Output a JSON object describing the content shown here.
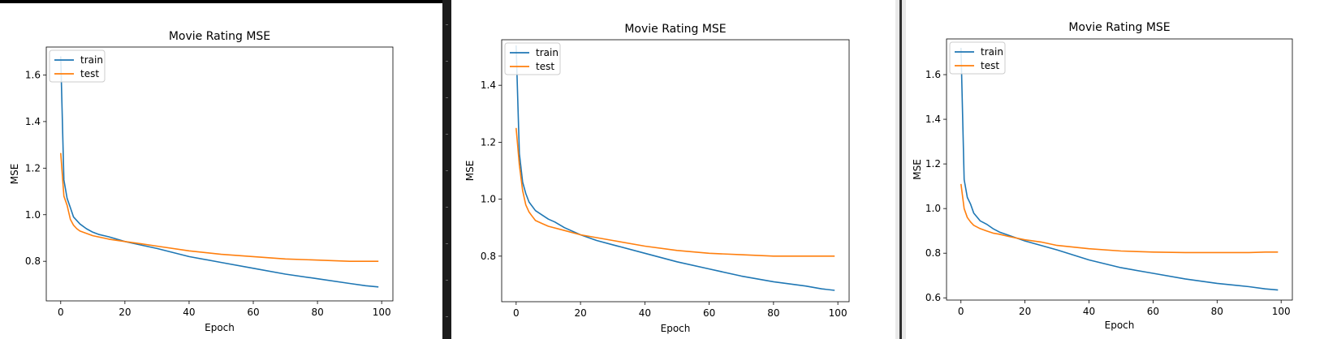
{
  "chart_data": [
    {
      "type": "line",
      "title": "Movie Rating MSE",
      "xlabel": "Epoch",
      "ylabel": "MSE",
      "xlim": [
        -4.5,
        103.5
      ],
      "ylim": [
        0.63,
        1.72
      ],
      "xticks": [
        0,
        20,
        40,
        60,
        80,
        100
      ],
      "xtick_labels": [
        "0",
        "20",
        "40",
        "60",
        "80",
        "100"
      ],
      "yticks": [
        0.8,
        1.0,
        1.2,
        1.4,
        1.6
      ],
      "ytick_labels": [
        "0.8",
        "1.0",
        "1.2",
        "1.4",
        "1.6"
      ],
      "legend_position": "top-left",
      "series": [
        {
          "name": "train",
          "color": "#1f77b4",
          "x": [
            0,
            1,
            2,
            3,
            4,
            6,
            8,
            10,
            12,
            15,
            20,
            25,
            30,
            40,
            50,
            60,
            70,
            80,
            90,
            95,
            99
          ],
          "y": [
            1.68,
            1.15,
            1.07,
            1.03,
            0.99,
            0.96,
            0.94,
            0.925,
            0.915,
            0.905,
            0.885,
            0.87,
            0.855,
            0.82,
            0.795,
            0.77,
            0.745,
            0.725,
            0.705,
            0.695,
            0.69
          ]
        },
        {
          "name": "test",
          "color": "#ff7f0e",
          "x": [
            0,
            1,
            2,
            3,
            4,
            5,
            6,
            8,
            10,
            15,
            20,
            25,
            30,
            40,
            50,
            60,
            70,
            80,
            90,
            95,
            99
          ],
          "y": [
            1.265,
            1.08,
            1.04,
            0.98,
            0.955,
            0.94,
            0.93,
            0.92,
            0.91,
            0.895,
            0.885,
            0.875,
            0.865,
            0.845,
            0.83,
            0.82,
            0.81,
            0.805,
            0.8,
            0.8,
            0.8
          ]
        }
      ]
    },
    {
      "type": "line",
      "title": "Movie Rating MSE",
      "xlabel": "Epoch",
      "ylabel": "MSE",
      "xlim": [
        -4.5,
        103.5
      ],
      "ylim": [
        0.64,
        1.56
      ],
      "xticks": [
        0,
        20,
        40,
        60,
        80,
        100
      ],
      "xtick_labels": [
        "0",
        "20",
        "40",
        "60",
        "80",
        "100"
      ],
      "yticks": [
        0.8,
        1.0,
        1.2,
        1.4
      ],
      "ytick_labels": [
        "0.8",
        "1.0",
        "1.2",
        "1.4"
      ],
      "legend_position": "top-left",
      "series": [
        {
          "name": "train",
          "color": "#1f77b4",
          "x": [
            0,
            1,
            2,
            3,
            4,
            6,
            8,
            10,
            12,
            15,
            20,
            25,
            30,
            40,
            50,
            60,
            70,
            80,
            90,
            95,
            99
          ],
          "y": [
            1.54,
            1.16,
            1.06,
            1.02,
            0.99,
            0.96,
            0.945,
            0.93,
            0.92,
            0.9,
            0.875,
            0.855,
            0.84,
            0.81,
            0.78,
            0.755,
            0.73,
            0.71,
            0.695,
            0.685,
            0.68
          ]
        },
        {
          "name": "test",
          "color": "#ff7f0e",
          "x": [
            0,
            1,
            2,
            3,
            4,
            5,
            6,
            8,
            10,
            15,
            20,
            25,
            30,
            40,
            50,
            60,
            70,
            80,
            90,
            95,
            99
          ],
          "y": [
            1.25,
            1.12,
            1.03,
            0.98,
            0.955,
            0.94,
            0.925,
            0.915,
            0.905,
            0.89,
            0.875,
            0.865,
            0.855,
            0.835,
            0.82,
            0.81,
            0.805,
            0.8,
            0.8,
            0.8,
            0.8
          ]
        }
      ]
    },
    {
      "type": "line",
      "title": "Movie Rating MSE",
      "xlabel": "Epoch",
      "ylabel": "MSE",
      "xlim": [
        -4.5,
        103.5
      ],
      "ylim": [
        0.59,
        1.76
      ],
      "xticks": [
        0,
        20,
        40,
        60,
        80,
        100
      ],
      "xtick_labels": [
        "0",
        "20",
        "40",
        "60",
        "80",
        "100"
      ],
      "yticks": [
        0.6,
        0.8,
        1.0,
        1.2,
        1.4,
        1.6
      ],
      "ytick_labels": [
        "0.6",
        "0.8",
        "1.0",
        "1.2",
        "1.4",
        "1.6"
      ],
      "legend_position": "top-left",
      "series": [
        {
          "name": "train",
          "color": "#1f77b4",
          "x": [
            0,
            1,
            2,
            3,
            4,
            6,
            8,
            10,
            12,
            15,
            20,
            25,
            30,
            40,
            50,
            60,
            70,
            80,
            90,
            95,
            99
          ],
          "y": [
            1.72,
            1.13,
            1.05,
            1.02,
            0.98,
            0.945,
            0.93,
            0.91,
            0.895,
            0.88,
            0.855,
            0.835,
            0.815,
            0.77,
            0.735,
            0.71,
            0.685,
            0.665,
            0.65,
            0.64,
            0.635
          ]
        },
        {
          "name": "test",
          "color": "#ff7f0e",
          "x": [
            0,
            1,
            2,
            3,
            4,
            6,
            8,
            10,
            12,
            15,
            20,
            25,
            30,
            40,
            50,
            60,
            70,
            80,
            90,
            95,
            99
          ],
          "y": [
            1.11,
            1.0,
            0.96,
            0.94,
            0.925,
            0.91,
            0.9,
            0.89,
            0.885,
            0.875,
            0.86,
            0.85,
            0.835,
            0.82,
            0.81,
            0.805,
            0.803,
            0.803,
            0.803,
            0.805,
            0.805
          ]
        }
      ]
    }
  ]
}
